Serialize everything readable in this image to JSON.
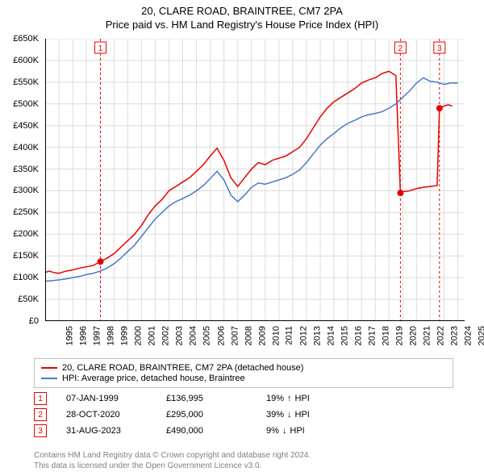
{
  "title": {
    "line1": "20, CLARE ROAD, BRAINTREE, CM7 2PA",
    "line2": "Price paid vs. HM Land Registry's House Price Index (HPI)",
    "fontsize": 13
  },
  "chart": {
    "type": "line",
    "background_color": "#ffffff",
    "grid_color": "#dcdcdc",
    "axis_color": "#000000",
    "x": {
      "label": "",
      "min": 1995,
      "max": 2025.5,
      "ticks": [
        1995,
        1996,
        1997,
        1998,
        1999,
        2000,
        2001,
        2002,
        2003,
        2004,
        2005,
        2006,
        2007,
        2008,
        2009,
        2010,
        2011,
        2012,
        2013,
        2014,
        2015,
        2016,
        2017,
        2018,
        2019,
        2020,
        2021,
        2022,
        2023,
        2024,
        2025
      ],
      "tick_fontsize": 11,
      "tick_orientation": "vertical"
    },
    "y": {
      "label": "",
      "min": 0,
      "max": 650000,
      "ticks": [
        0,
        50000,
        100000,
        150000,
        200000,
        250000,
        300000,
        350000,
        400000,
        450000,
        500000,
        550000,
        600000,
        650000
      ],
      "tick_labels": [
        "£0",
        "£50K",
        "£100K",
        "£150K",
        "£200K",
        "£250K",
        "£300K",
        "£350K",
        "£400K",
        "£450K",
        "£500K",
        "£550K",
        "£600K",
        "£650K"
      ],
      "tick_fontsize": 11
    },
    "series": [
      {
        "name": "price_paid",
        "color": "#e80000",
        "line_width": 1.5,
        "data": [
          [
            1995.0,
            112000
          ],
          [
            1995.3,
            115000
          ],
          [
            1995.6,
            112000
          ],
          [
            1996.0,
            110000
          ],
          [
            1996.5,
            115000
          ],
          [
            1997.0,
            118000
          ],
          [
            1997.5,
            122000
          ],
          [
            1998.0,
            125000
          ],
          [
            1998.5,
            128000
          ],
          [
            1999.0,
            136995
          ],
          [
            1999.5,
            145000
          ],
          [
            2000.0,
            155000
          ],
          [
            2000.5,
            170000
          ],
          [
            2001.0,
            185000
          ],
          [
            2001.5,
            200000
          ],
          [
            2002.0,
            220000
          ],
          [
            2002.5,
            245000
          ],
          [
            2003.0,
            265000
          ],
          [
            2003.5,
            280000
          ],
          [
            2004.0,
            300000
          ],
          [
            2004.5,
            310000
          ],
          [
            2005.0,
            320000
          ],
          [
            2005.5,
            330000
          ],
          [
            2006.0,
            345000
          ],
          [
            2006.5,
            360000
          ],
          [
            2007.0,
            380000
          ],
          [
            2007.5,
            398000
          ],
          [
            2008.0,
            370000
          ],
          [
            2008.5,
            330000
          ],
          [
            2009.0,
            310000
          ],
          [
            2009.5,
            330000
          ],
          [
            2010.0,
            350000
          ],
          [
            2010.5,
            365000
          ],
          [
            2011.0,
            360000
          ],
          [
            2011.5,
            370000
          ],
          [
            2012.0,
            375000
          ],
          [
            2012.5,
            380000
          ],
          [
            2013.0,
            390000
          ],
          [
            2013.5,
            400000
          ],
          [
            2014.0,
            420000
          ],
          [
            2014.5,
            445000
          ],
          [
            2015.0,
            470000
          ],
          [
            2015.5,
            490000
          ],
          [
            2016.0,
            505000
          ],
          [
            2016.5,
            515000
          ],
          [
            2017.0,
            525000
          ],
          [
            2017.5,
            535000
          ],
          [
            2018.0,
            548000
          ],
          [
            2018.5,
            555000
          ],
          [
            2019.0,
            560000
          ],
          [
            2019.5,
            570000
          ],
          [
            2020.0,
            575000
          ],
          [
            2020.5,
            565000
          ],
          [
            2020.83,
            295000
          ],
          [
            2021.0,
            298000
          ],
          [
            2021.5,
            300000
          ],
          [
            2022.0,
            305000
          ],
          [
            2022.5,
            308000
          ],
          [
            2023.0,
            310000
          ],
          [
            2023.5,
            312000
          ],
          [
            2023.67,
            490000
          ],
          [
            2024.0,
            495000
          ],
          [
            2024.3,
            498000
          ],
          [
            2024.6,
            495000
          ]
        ]
      },
      {
        "name": "hpi",
        "color": "#4a78c9",
        "line_width": 1.5,
        "data": [
          [
            1995.0,
            92000
          ],
          [
            1995.5,
            93000
          ],
          [
            1996.0,
            95000
          ],
          [
            1996.5,
            97000
          ],
          [
            1997.0,
            100000
          ],
          [
            1997.5,
            103000
          ],
          [
            1998.0,
            107000
          ],
          [
            1998.5,
            110000
          ],
          [
            1999.0,
            115000
          ],
          [
            1999.5,
            122000
          ],
          [
            2000.0,
            132000
          ],
          [
            2000.5,
            145000
          ],
          [
            2001.0,
            160000
          ],
          [
            2001.5,
            175000
          ],
          [
            2002.0,
            195000
          ],
          [
            2002.5,
            215000
          ],
          [
            2003.0,
            235000
          ],
          [
            2003.5,
            250000
          ],
          [
            2004.0,
            265000
          ],
          [
            2004.5,
            275000
          ],
          [
            2005.0,
            282000
          ],
          [
            2005.5,
            290000
          ],
          [
            2006.0,
            300000
          ],
          [
            2006.5,
            312000
          ],
          [
            2007.0,
            328000
          ],
          [
            2007.5,
            345000
          ],
          [
            2008.0,
            325000
          ],
          [
            2008.5,
            290000
          ],
          [
            2009.0,
            275000
          ],
          [
            2009.5,
            290000
          ],
          [
            2010.0,
            308000
          ],
          [
            2010.5,
            318000
          ],
          [
            2011.0,
            315000
          ],
          [
            2011.5,
            320000
          ],
          [
            2012.0,
            325000
          ],
          [
            2012.5,
            330000
          ],
          [
            2013.0,
            338000
          ],
          [
            2013.5,
            348000
          ],
          [
            2014.0,
            365000
          ],
          [
            2014.5,
            385000
          ],
          [
            2015.0,
            405000
          ],
          [
            2015.5,
            420000
          ],
          [
            2016.0,
            432000
          ],
          [
            2016.5,
            445000
          ],
          [
            2017.0,
            455000
          ],
          [
            2017.5,
            462000
          ],
          [
            2018.0,
            470000
          ],
          [
            2018.5,
            475000
          ],
          [
            2019.0,
            478000
          ],
          [
            2019.5,
            482000
          ],
          [
            2020.0,
            490000
          ],
          [
            2020.5,
            500000
          ],
          [
            2021.0,
            515000
          ],
          [
            2021.5,
            530000
          ],
          [
            2022.0,
            548000
          ],
          [
            2022.5,
            560000
          ],
          [
            2023.0,
            552000
          ],
          [
            2023.5,
            550000
          ],
          [
            2024.0,
            545000
          ],
          [
            2024.5,
            548000
          ],
          [
            2025.0,
            548000
          ]
        ]
      }
    ],
    "markers": [
      {
        "idx": "1",
        "x": 1999.02,
        "y_above": true,
        "dot_y": 136995
      },
      {
        "idx": "2",
        "x": 2020.83,
        "y_above": true,
        "dot_y": 295000
      },
      {
        "idx": "3",
        "x": 2023.67,
        "y_above": true,
        "dot_y": 490000
      }
    ]
  },
  "legend": {
    "rows": [
      {
        "swatch_color": "#e80000",
        "label": "20, CLARE ROAD, BRAINTREE, CM7 2PA (detached house)"
      },
      {
        "swatch_color": "#4a78c9",
        "label": "HPI: Average price, detached house, Braintree"
      }
    ]
  },
  "events": [
    {
      "idx": "1",
      "date": "07-JAN-1999",
      "price": "£136,995",
      "delta_pct": "19%",
      "direction": "up",
      "ref": "HPI"
    },
    {
      "idx": "2",
      "date": "28-OCT-2020",
      "price": "£295,000",
      "delta_pct": "39%",
      "direction": "down",
      "ref": "HPI"
    },
    {
      "idx": "3",
      "date": "31-AUG-2023",
      "price": "£490,000",
      "delta_pct": "9%",
      "direction": "down",
      "ref": "HPI"
    }
  ],
  "footer": {
    "line1": "Contains HM Land Registry data © Crown copyright and database right 2024.",
    "line2": "This data is licensed under the Open Government Licence v3.0."
  }
}
